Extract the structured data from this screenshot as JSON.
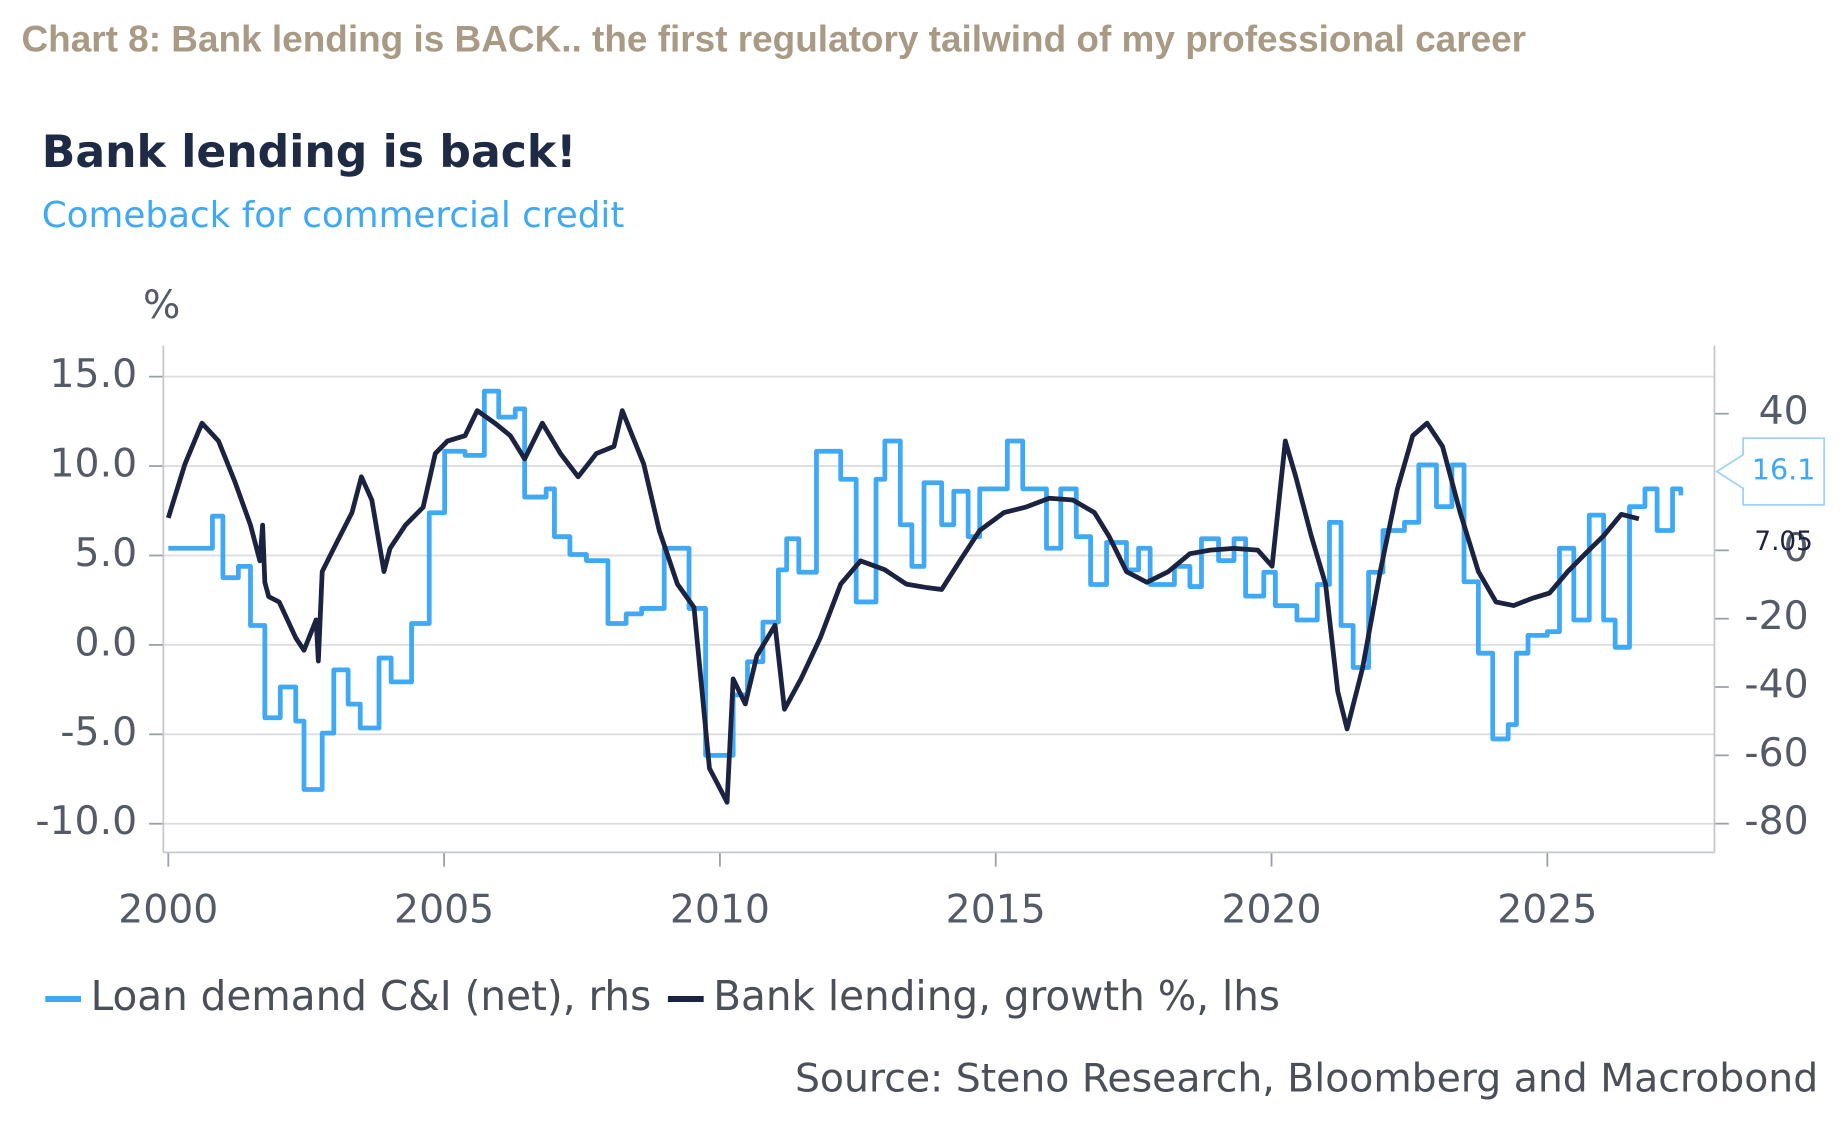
{
  "heading": "Chart 8: Bank lending is BACK.. the first regulatory tailwind of my professional career",
  "chart_data": {
    "type": "line",
    "title": "Bank lending is back!",
    "subtitle": "Comeback for commercial credit",
    "y_label": "%",
    "source": "Source: Steno Research, Bloomberg and Macrobond",
    "xlim": [
      1999.91,
      2028.03
    ],
    "xticks": [
      2000,
      2005,
      2010,
      2015,
      2020,
      2025
    ],
    "ylim": [
      -11.6,
      16.73
    ],
    "yticks": [
      {
        "value": 15,
        "label": "15.0"
      },
      {
        "value": 10,
        "label": "10.0"
      },
      {
        "value": 5,
        "label": "5.0"
      },
      {
        "value": 0,
        "label": "0.0"
      },
      {
        "value": -5,
        "label": "-5.0"
      },
      {
        "value": -10,
        "label": "-10.0"
      }
    ],
    "y2lim": [
      -88.4,
      59.9
    ],
    "y2ticks": [
      40,
      0,
      -20,
      -40,
      -60,
      -80
    ],
    "grid": true,
    "series": [
      {
        "name": "Loan demand C&I (net), rhs",
        "color": "#3fa9f5",
        "axis": "y2",
        "step": true,
        "x": [
          2000.0,
          2000.8,
          2000.99,
          2001.27,
          2001.49,
          2001.75,
          2002.03,
          2002.31,
          2002.46,
          2002.79,
          2003.0,
          2003.26,
          2003.48,
          2003.82,
          2004.04,
          2004.41,
          2004.73,
          2005.01,
          2005.38,
          2005.73,
          2005.99,
          2006.29,
          2006.46,
          2006.85,
          2007.0,
          2007.28,
          2007.58,
          2007.97,
          2008.3,
          2008.58,
          2008.99,
          2009.44,
          2009.74,
          2010.24,
          2010.5,
          2010.78,
          2011.06,
          2011.21,
          2011.43,
          2011.75,
          2012.19,
          2012.47,
          2012.83,
          2012.99,
          2013.27,
          2013.48,
          2013.7,
          2014.02,
          2014.24,
          2014.5,
          2014.71,
          2015.21,
          2015.49,
          2015.92,
          2016.18,
          2016.46,
          2016.72,
          2017.01,
          2017.37,
          2017.59,
          2017.8,
          2018.24,
          2018.52,
          2018.73,
          2019.04,
          2019.32,
          2019.53,
          2019.86,
          2020.07,
          2020.46,
          2020.83,
          2021.05,
          2021.26,
          2021.48,
          2021.76,
          2022.02,
          2022.41,
          2022.67,
          2022.99,
          2023.27,
          2023.49,
          2023.75,
          2024.01,
          2024.29,
          2024.44,
          2024.65,
          2025.0,
          2025.22,
          2025.48,
          2025.76,
          2026.02,
          2026.23,
          2026.49,
          2026.77,
          2026.99,
          2027.27,
          2027.42
        ],
        "values": [
          0.6,
          10,
          -8,
          -4.7,
          -22,
          -49,
          -40,
          -50,
          -70,
          -53.5,
          -35,
          -45,
          -52,
          -31.5,
          -38.5,
          -21.4,
          11,
          29,
          27.8,
          46.6,
          39,
          41.4,
          15.6,
          18,
          4,
          -1.2,
          -3,
          -21.4,
          -18.6,
          -17,
          0.6,
          -17,
          -60,
          -42.3,
          -32.6,
          -21,
          -5.7,
          3.4,
          -6.4,
          29,
          20.8,
          -15.1,
          20.8,
          32,
          7.5,
          -4.7,
          19.8,
          7.5,
          17.3,
          4,
          18,
          32,
          18,
          0.6,
          18,
          4,
          -10,
          2.3,
          -5.7,
          0.6,
          -10,
          -4.7,
          -10.6,
          3.4,
          -3,
          3.4,
          -13.4,
          -6.4,
          -16.2,
          -20.4,
          -10,
          8.2,
          -22,
          -34.3,
          -6.4,
          5.8,
          8.2,
          25,
          12.8,
          25,
          -9.2,
          -30.1,
          -55.2,
          -51,
          -30.1,
          -24.9,
          -23.8,
          0.6,
          -20.4,
          10.3,
          -20.4,
          -28.4,
          12.8,
          18,
          5.8,
          18,
          16.1
        ]
      },
      {
        "name": "Bank lending, growth %, lhs",
        "color": "#1c2340",
        "x": [
          2000.0,
          2000.3,
          2000.61,
          2000.91,
          2001.21,
          2001.49,
          2001.66,
          2001.71,
          2001.75,
          2001.82,
          2002.01,
          2002.31,
          2002.46,
          2002.68,
          2002.72,
          2002.79,
          2003.0,
          2003.33,
          2003.5,
          2003.69,
          2003.91,
          2004.02,
          2004.3,
          2004.62,
          2004.84,
          2005.06,
          2005.38,
          2005.6,
          2005.92,
          2006.2,
          2006.46,
          2006.78,
          2007.11,
          2007.43,
          2007.76,
          2008.08,
          2008.23,
          2008.62,
          2008.9,
          2009.23,
          2009.53,
          2009.81,
          2009.98,
          2010.13,
          2010.24,
          2010.46,
          2010.67,
          2011.0,
          2011.17,
          2011.47,
          2011.82,
          2012.19,
          2012.55,
          2012.99,
          2013.38,
          2013.76,
          2014.02,
          2014.35,
          2014.71,
          2015.15,
          2015.54,
          2015.97,
          2016.4,
          2016.79,
          2017.05,
          2017.37,
          2017.74,
          2018.13,
          2018.52,
          2018.89,
          2019.32,
          2019.75,
          2020.01,
          2020.25,
          2020.44,
          2020.72,
          2020.98,
          2021.2,
          2021.37,
          2021.65,
          2021.97,
          2022.28,
          2022.56,
          2022.82,
          2023.1,
          2023.42,
          2023.75,
          2024.07,
          2024.39,
          2024.72,
          2025.04,
          2025.37,
          2025.69,
          2026.02,
          2026.34,
          2026.66
        ],
        "values": [
          7.1,
          10.1,
          12.4,
          11.4,
          9.1,
          6.7,
          4.7,
          6.7,
          3.5,
          2.7,
          2.4,
          0.4,
          -0.3,
          1.4,
          -0.9,
          4.1,
          5.4,
          7.4,
          9.4,
          8.1,
          4.1,
          5.4,
          6.7,
          7.7,
          10.7,
          11.4,
          11.7,
          13.1,
          12.4,
          11.7,
          10.4,
          12.4,
          10.7,
          9.4,
          10.7,
          11.1,
          13.1,
          10.1,
          6.4,
          3.4,
          2.1,
          -6.9,
          -7.9,
          -8.8,
          -1.9,
          -3.3,
          -0.6,
          1.1,
          -3.6,
          -1.9,
          0.4,
          3.4,
          4.7,
          4.2,
          3.4,
          3.2,
          3.1,
          4.7,
          6.4,
          7.4,
          7.7,
          8.2,
          8.1,
          7.4,
          6.1,
          4.1,
          3.5,
          4.1,
          5.1,
          5.3,
          5.4,
          5.3,
          4.4,
          11.4,
          9.4,
          6.1,
          3.4,
          -2.6,
          -4.7,
          -1.3,
          4.1,
          8.7,
          11.7,
          12.4,
          11.1,
          7.4,
          4.1,
          2.4,
          2.2,
          2.6,
          2.9,
          4.1,
          5.1,
          6.1,
          7.3,
          7.05
        ]
      }
    ]
  }
}
